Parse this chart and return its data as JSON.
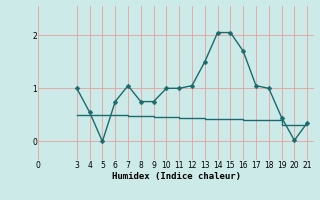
{
  "xlabel": "Humidex (Indice chaleur)",
  "ylabel": "",
  "bg_color": "#cceae8",
  "grid_color": "#e8a0a0",
  "line_color": "#1a6b6b",
  "series1_x": [
    3,
    4,
    5,
    6,
    7,
    8,
    9,
    10,
    11,
    12,
    13,
    14,
    15,
    16,
    17,
    18,
    19,
    20,
    21
  ],
  "series1_y": [
    1.0,
    0.55,
    0.0,
    0.75,
    1.05,
    0.75,
    0.75,
    1.0,
    1.0,
    1.05,
    1.5,
    2.05,
    2.05,
    1.7,
    1.05,
    1.0,
    0.45,
    0.02,
    0.35
  ],
  "series2_x": [
    3,
    4,
    5,
    6,
    7,
    8,
    9,
    10,
    11,
    12,
    13,
    14,
    15,
    16,
    17,
    18,
    19,
    20,
    21
  ],
  "series2_y": [
    0.5,
    0.5,
    0.5,
    0.49,
    0.48,
    0.47,
    0.46,
    0.46,
    0.45,
    0.44,
    0.43,
    0.42,
    0.42,
    0.41,
    0.4,
    0.4,
    0.31,
    0.31,
    0.35
  ],
  "xlim": [
    0,
    21.5
  ],
  "ylim": [
    -0.35,
    2.55
  ],
  "yticks": [
    0,
    1,
    2
  ],
  "xticks": [
    0,
    3,
    4,
    5,
    6,
    7,
    8,
    9,
    10,
    11,
    12,
    13,
    14,
    15,
    16,
    17,
    18,
    19,
    20,
    21
  ],
  "marker_size": 2.5,
  "line_width": 1.0
}
